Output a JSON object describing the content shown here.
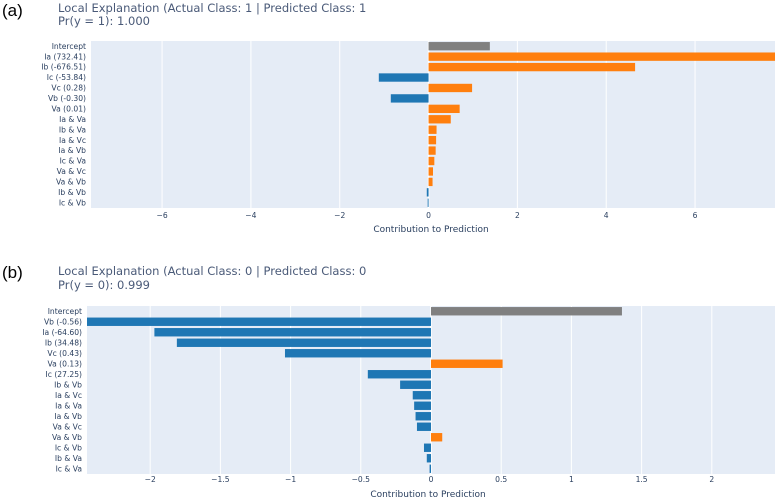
{
  "colors": {
    "positive": "#ff7f0e",
    "negative": "#1f77b4",
    "intercept": "#808080",
    "plot_bg": "#e5ecf6",
    "grid": "#ffffff"
  },
  "chart_data": [
    {
      "panel": "(a)",
      "type": "bar",
      "orientation": "horizontal",
      "title": "Local Explanation (Actual Class: 1 | Predicted Class: 1",
      "subtitle": "Pr(y = 1): 1.000",
      "xlabel": "Contribution to Prediction",
      "xlim": [
        -7.6,
        7.8
      ],
      "xticks": [
        -6,
        -4,
        -2,
        0,
        2,
        4,
        6
      ],
      "xtick_labels": [
        "−6",
        "−4",
        "−2",
        "0",
        "2",
        "4",
        "6"
      ],
      "categories": [
        "Intercept",
        "Ia (732.41)",
        "Ib (-676.51)",
        "Ic (-53.84)",
        "Vc (0.28)",
        "Vb (-0.30)",
        "Va (0.01)",
        "Ia & Va",
        "Ib & Va",
        "Ia & Vc",
        "Ia & Vb",
        "Ic & Va",
        "Va & Vc",
        "Va & Vb",
        "Ib & Vb",
        "Ic & Vb"
      ],
      "values": [
        1.38,
        7.9,
        4.65,
        -1.12,
        0.98,
        -0.85,
        0.7,
        0.5,
        0.18,
        0.17,
        0.16,
        0.13,
        0.1,
        0.09,
        -0.04,
        -0.02
      ],
      "series_kind": [
        "intercept",
        "term",
        "term",
        "term",
        "term",
        "term",
        "term",
        "term",
        "term",
        "term",
        "term",
        "term",
        "term",
        "term",
        "term",
        "term"
      ]
    },
    {
      "panel": "(b)",
      "type": "bar",
      "orientation": "horizontal",
      "title": "Local Explanation (Actual Class: 0 | Predicted Class: 0",
      "subtitle": "Pr(y = 0): 0.999",
      "xlabel": "Contribution to Prediction",
      "xlim": [
        -2.45,
        2.45
      ],
      "xticks": [
        -2,
        -1.5,
        -1,
        -0.5,
        0,
        0.5,
        1,
        1.5,
        2
      ],
      "xtick_labels": [
        "−2",
        "−1.5",
        "−1",
        "−0.5",
        "0",
        "0.5",
        "1",
        "1.5",
        "2"
      ],
      "categories": [
        "Intercept",
        "Vb (-0.56)",
        "Ia (-64.60)",
        "Ib (34.48)",
        "Vc (0.43)",
        "Va (0.13)",
        "Ic (27.25)",
        "Ib & Vb",
        "Ia & Vc",
        "Ia & Va",
        "Ia & Vb",
        "Va & Vc",
        "Va & Vb",
        "Ic & Vb",
        "Ib & Va",
        "Ic & Va"
      ],
      "values": [
        1.36,
        -2.5,
        -1.97,
        -1.81,
        -1.04,
        0.51,
        -0.45,
        -0.22,
        -0.13,
        -0.12,
        -0.11,
        -0.1,
        0.08,
        -0.05,
        -0.03,
        -0.01
      ],
      "series_kind": [
        "intercept",
        "term",
        "term",
        "term",
        "term",
        "term",
        "term",
        "term",
        "term",
        "term",
        "term",
        "term",
        "term",
        "term",
        "term",
        "term"
      ]
    }
  ]
}
